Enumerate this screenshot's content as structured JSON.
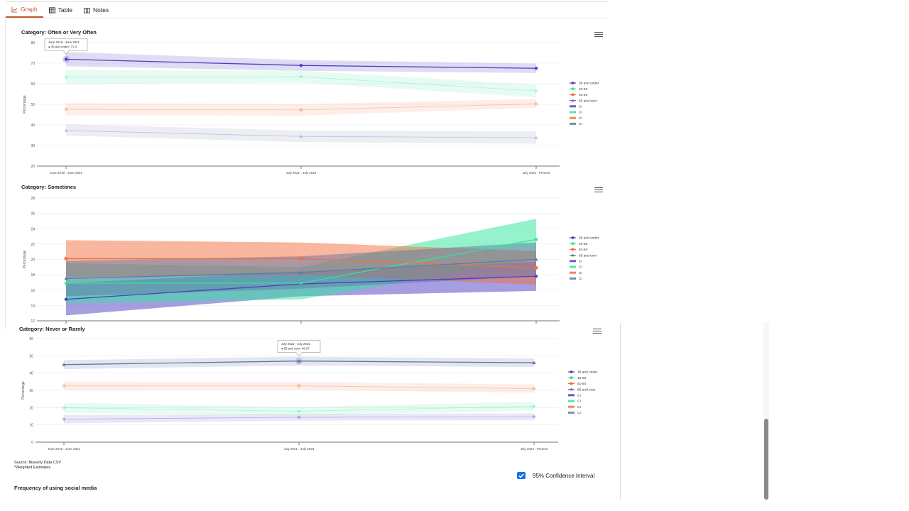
{
  "tabs": [
    {
      "label": "Graph",
      "icon": "line-chart-icon",
      "active": true
    },
    {
      "label": "Table",
      "icon": "table-icon",
      "active": false
    },
    {
      "label": "Notes",
      "icon": "book-icon",
      "active": false
    }
  ],
  "colors": {
    "s1": "#4b3fc4",
    "s2": "#2ee59a",
    "s3": "#f2703e",
    "s4": "#6277a8"
  },
  "legend": [
    "39 and under",
    "40-50",
    "51-64",
    "65 and over",
    "CI",
    "CI",
    "CI",
    "CI"
  ],
  "chart_data": [
    {
      "type": "line",
      "title": "Category: Often or Very Often",
      "ylabel": "Percentage",
      "ylim": [
        20,
        80
      ],
      "yticks": [
        "20",
        "30",
        "40",
        "50",
        "60",
        "70",
        "80"
      ],
      "categories": [
        "June 2019 - June 2021",
        "July 2021 - July 2023",
        "July 2023 - Present"
      ],
      "series": [
        {
          "name": "39 and under",
          "values": [
            71.9,
            68.9,
            67.5
          ],
          "lower": [
            68.5,
            66.3,
            65.2
          ],
          "upper": [
            75.4,
            71.5,
            69.8
          ],
          "highlighted": true
        },
        {
          "name": "40-50",
          "values": [
            63.2,
            63.4,
            56.5
          ],
          "lower": [
            59.8,
            60.5,
            53.4
          ],
          "upper": [
            66.6,
            66.3,
            59.6
          ]
        },
        {
          "name": "51-64",
          "values": [
            47.6,
            47.3,
            50.2
          ],
          "lower": [
            44.6,
            44.5,
            48.3
          ],
          "upper": [
            50.6,
            50.1,
            52.6
          ]
        },
        {
          "name": "65 and over",
          "values": [
            37.3,
            34.4,
            33.8
          ],
          "lower": [
            34.8,
            31.6,
            30.9
          ],
          "upper": [
            40.3,
            37.3,
            36.8
          ]
        }
      ],
      "tooltip": {
        "header": "June 2019 - June 2021",
        "text": "● 39 and under: 71.9",
        "series": 0,
        "index": 0
      }
    },
    {
      "type": "line",
      "title": "Category: Sometimes",
      "ylabel": "Percentage",
      "ylim": [
        12,
        28
      ],
      "yticks": [
        "12",
        "14",
        "16",
        "18",
        "20",
        "22",
        "24",
        "26",
        "28"
      ],
      "categories": [
        "June 2019 - June 2021",
        "July 2021 - July 2023",
        "July 2023 - Present"
      ],
      "series": [
        {
          "name": "39 and under",
          "values": [
            14.8,
            16.8,
            17.8
          ],
          "lower": [
            12.7,
            15.2,
            15.9
          ],
          "upper": [
            16.9,
            18.4,
            19.7
          ]
        },
        {
          "name": "40-50",
          "values": [
            16.9,
            16.9,
            22.6
          ],
          "lower": [
            14.3,
            14.8,
            20.0
          ],
          "upper": [
            19.5,
            19.0,
            25.3
          ]
        },
        {
          "name": "51-64",
          "values": [
            20.1,
            20.1,
            18.9
          ],
          "lower": [
            17.7,
            18.0,
            16.7
          ],
          "upper": [
            22.5,
            22.2,
            21.1
          ]
        },
        {
          "name": "65 and over",
          "values": [
            17.5,
            18.3,
            20.0
          ],
          "lower": [
            15.2,
            16.2,
            17.8
          ],
          "upper": [
            19.8,
            20.4,
            22.2
          ]
        }
      ]
    },
    {
      "type": "line",
      "title": "Category: Never or Rarely",
      "ylabel": "Percentage",
      "ylim": [
        0,
        60
      ],
      "yticks": [
        "0",
        "10",
        "20",
        "30",
        "40",
        "50",
        "60"
      ],
      "categories": [
        "June 2019 - June 2021",
        "July 2021 - July 2023",
        "July 2023 - Present"
      ],
      "series": [
        {
          "name": "39 and under",
          "values": [
            13.3,
            14.4,
            14.7
          ],
          "lower": [
            10.9,
            12.5,
            12.7
          ],
          "upper": [
            15.7,
            16.3,
            16.7
          ]
        },
        {
          "name": "40-50",
          "values": [
            19.9,
            17.9,
            20.8
          ],
          "lower": [
            17.0,
            15.4,
            18.2
          ],
          "upper": [
            22.8,
            20.4,
            23.4
          ]
        },
        {
          "name": "51-64",
          "values": [
            32.6,
            32.6,
            31.0
          ],
          "lower": [
            30.1,
            30.3,
            28.6
          ],
          "upper": [
            35.1,
            34.9,
            33.4
          ]
        },
        {
          "name": "65 and over",
          "values": [
            44.9,
            46.97,
            46.0
          ],
          "lower": [
            42.3,
            44.4,
            43.5
          ],
          "upper": [
            47.5,
            49.5,
            48.5
          ],
          "highlighted": true
        }
      ],
      "tooltip": {
        "header": "July 2021 - July 2023",
        "text": "● 65 and over: 46.97",
        "series": 3,
        "index": 1
      }
    }
  ],
  "footer": {
    "source": "Source: Biyearly Data CSV",
    "note": "*Weighted Estimates",
    "ci_label": "95% Confidence Interval",
    "title": "Frequency of using social media"
  }
}
